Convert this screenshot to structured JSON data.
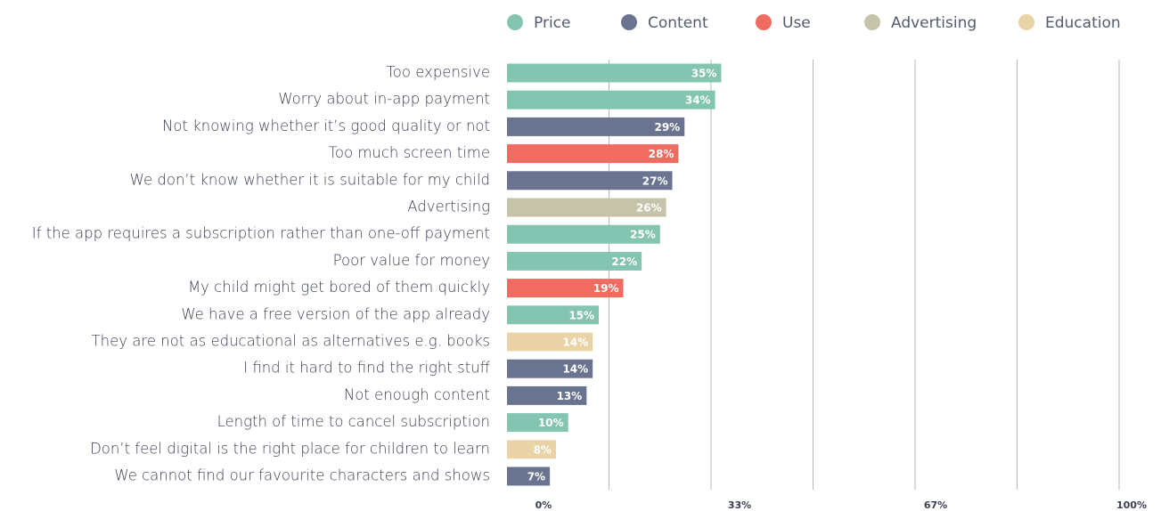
{
  "chart_data": {
    "type": "bar",
    "orientation": "horizontal",
    "legend": [
      {
        "name": "Price",
        "color": "#84c5b2"
      },
      {
        "name": "Content",
        "color": "#6a7490"
      },
      {
        "name": "Use",
        "color": "#f06b60"
      },
      {
        "name": "Advertising",
        "color": "#c5c4ab"
      },
      {
        "name": "Education",
        "color": "#ead3a6"
      }
    ],
    "legend_position": "top",
    "categories": [
      "Too expensive",
      "Worry about in-app payment",
      "Not knowing whether it’s good quality or not",
      "Too much screen time",
      "We don’t know whether it is suitable for my child",
      "Advertising",
      "If the app requires a subscription rather than one-off payment",
      "Poor value for money",
      "My child might get bored of them quickly",
      "We have a free version of the app already",
      "They are not as educational as alternatives e.g. books",
      "I find it hard to find the right stuff",
      "Not enough content",
      "Length of time to cancel subscription",
      "Don’t feel digital is the right place for children to learn",
      "We cannot find our favourite characters and shows"
    ],
    "groups": [
      "Price",
      "Price",
      "Content",
      "Use",
      "Content",
      "Advertising",
      "Price",
      "Price",
      "Use",
      "Price",
      "Education",
      "Content",
      "Content",
      "Price",
      "Education",
      "Content"
    ],
    "values": [
      35,
      34,
      29,
      28,
      27,
      26,
      25,
      22,
      19,
      15,
      14,
      14,
      13,
      10,
      8,
      7
    ],
    "value_labels": [
      "35%",
      "34%",
      "29%",
      "28%",
      "27%",
      "26%",
      "25%",
      "22%",
      "19%",
      "15%",
      "14%",
      "14%",
      "13%",
      "10%",
      "8%",
      "7%"
    ],
    "xlim": [
      0,
      100
    ],
    "xticks": [
      {
        "value": 0,
        "label": "0%"
      },
      {
        "value": 33.33,
        "label": "33%"
      },
      {
        "value": 66.67,
        "label": "67%"
      },
      {
        "value": 100,
        "label": "100%"
      }
    ],
    "xgrid": [
      16.67,
      33.33,
      50,
      66.67,
      83.33,
      100
    ]
  }
}
